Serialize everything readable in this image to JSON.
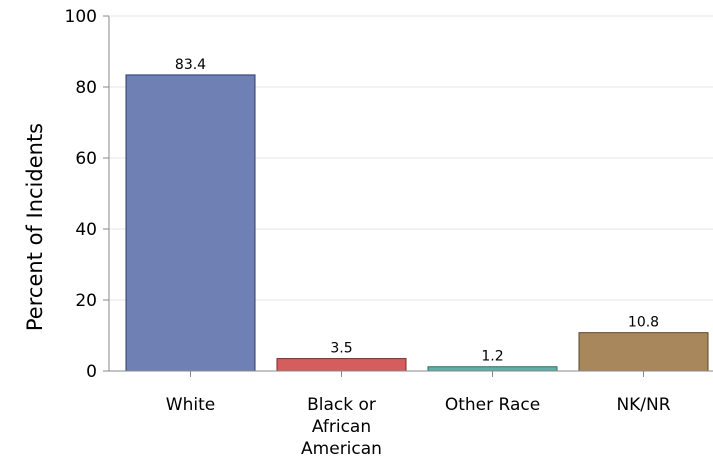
{
  "chart_data": {
    "type": "bar",
    "title": "",
    "xlabel": "",
    "ylabel": "Percent of Incidents",
    "ylim": [
      0,
      100
    ],
    "yticks": [
      0,
      20,
      40,
      60,
      80,
      100
    ],
    "grid": true,
    "categories": [
      [
        "White"
      ],
      [
        "Black or",
        "African",
        "American"
      ],
      [
        "Other Race"
      ],
      [
        "NK/NR"
      ]
    ],
    "values": [
      83.4,
      3.5,
      1.2,
      10.8
    ],
    "value_labels": [
      "83.4",
      "3.5",
      "1.2",
      "10.8"
    ],
    "colors": {
      "fills": [
        "#6f80b5",
        "#d55d5e",
        "#5fb0a6",
        "#a8875d"
      ],
      "strokes": [
        "#2e3a6a",
        "#7a2a2b",
        "#2d6f68",
        "#5e4526"
      ],
      "grid": "#e4e4e4",
      "axis": "#888888"
    }
  }
}
